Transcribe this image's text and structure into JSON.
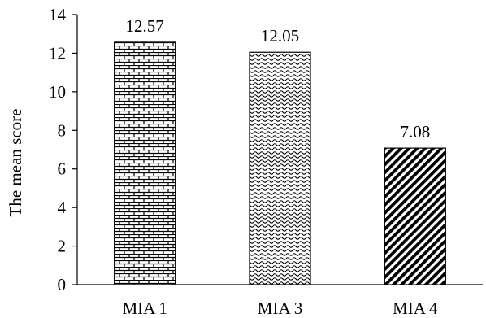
{
  "chart_data": {
    "type": "bar",
    "categories": [
      "MIA 1",
      "MIA 3",
      "MIA 4"
    ],
    "values": [
      12.57,
      12.05,
      7.08
    ],
    "data_labels": [
      "12.57",
      "12.05",
      "7.08"
    ],
    "title": "",
    "xlabel": "",
    "ylabel": "The mean score",
    "ylim": [
      0,
      14
    ],
    "yticks": [
      0,
      2,
      4,
      6,
      8,
      10,
      12,
      14
    ],
    "grid": false,
    "legend": "none",
    "bar_patterns": [
      "brick",
      "wave",
      "diagonal"
    ],
    "colors": {
      "fill": "#ffffff",
      "stroke": "#000000"
    }
  }
}
